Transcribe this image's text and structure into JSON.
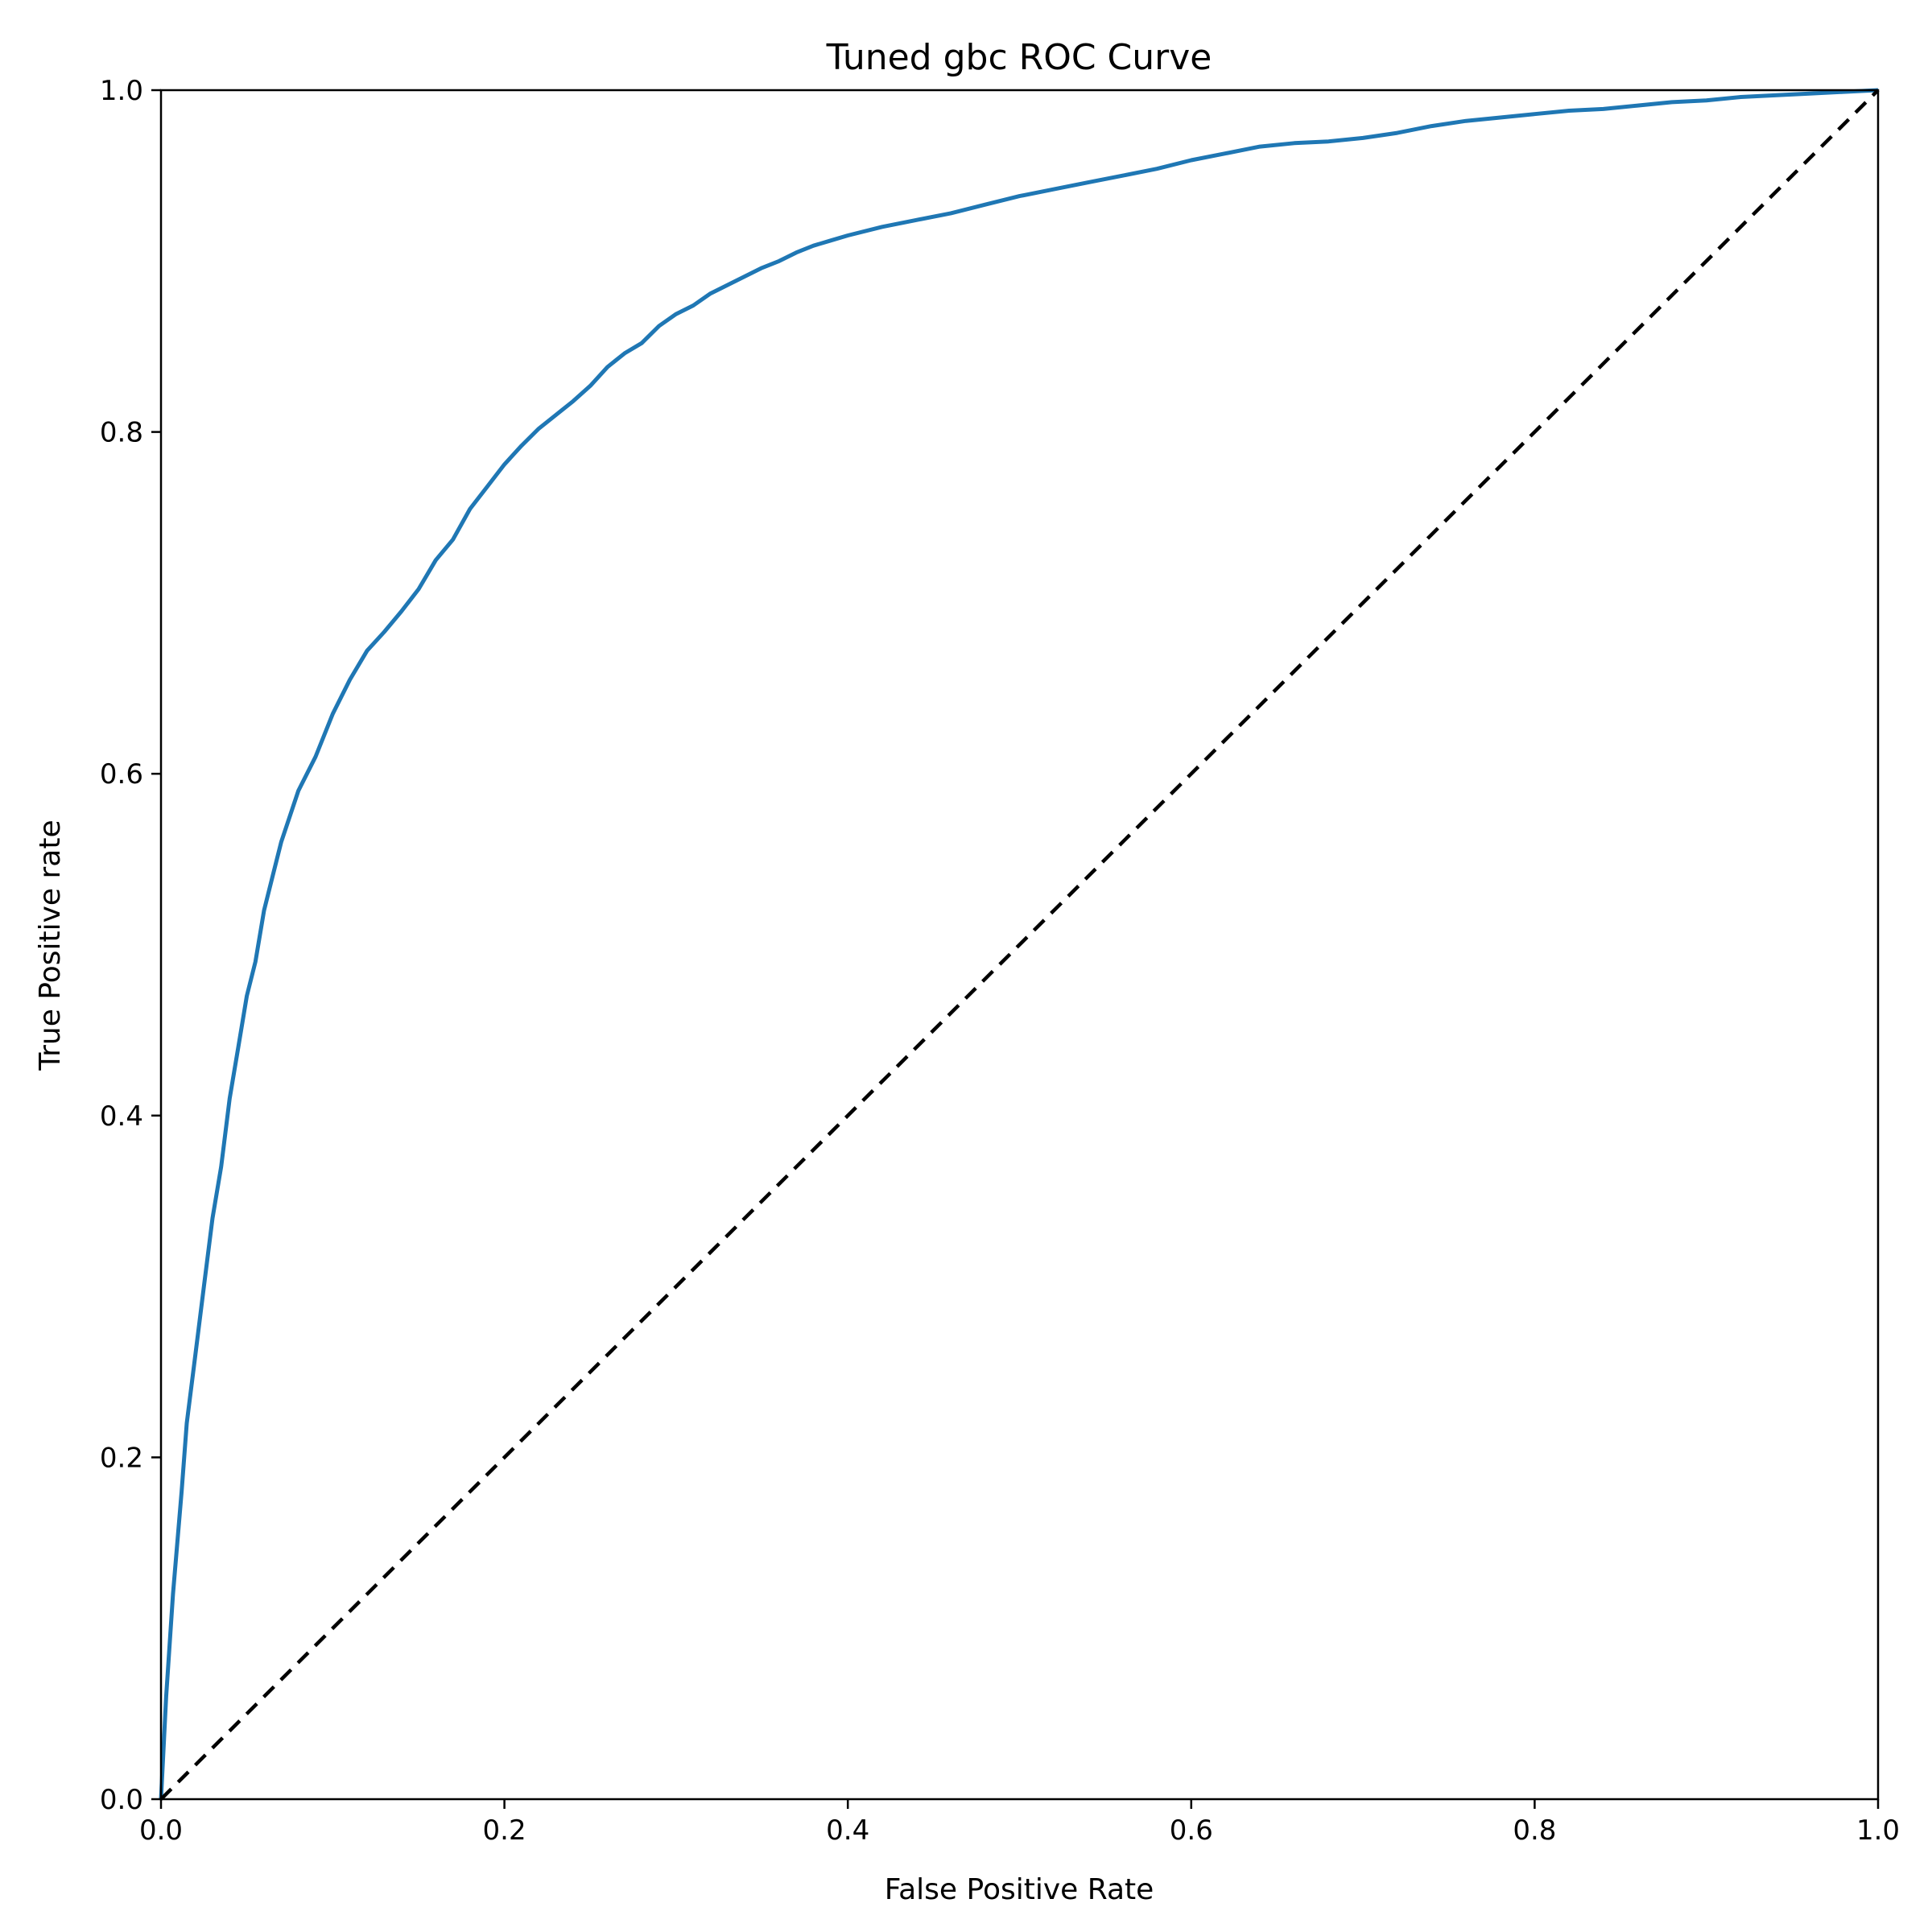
{
  "chart_data": {
    "type": "line",
    "title": "Tuned gbc ROC Curve",
    "xlabel": "False Positive Rate",
    "ylabel": "True Positive rate",
    "xlim": [
      0,
      1
    ],
    "ylim": [
      0,
      1
    ],
    "x_ticks": [
      "0.0",
      "0.2",
      "0.4",
      "0.6",
      "0.8",
      "1.0"
    ],
    "y_ticks": [
      "0.0",
      "0.2",
      "0.4",
      "0.6",
      "0.8",
      "1.0"
    ],
    "grid": false,
    "series": [
      {
        "color": "#1f77b4",
        "line_style": "solid",
        "points": [
          [
            0.0,
            0.0
          ],
          [
            0.003,
            0.06
          ],
          [
            0.007,
            0.12
          ],
          [
            0.012,
            0.18
          ],
          [
            0.015,
            0.22
          ],
          [
            0.02,
            0.26
          ],
          [
            0.025,
            0.3
          ],
          [
            0.03,
            0.34
          ],
          [
            0.035,
            0.37
          ],
          [
            0.04,
            0.41
          ],
          [
            0.045,
            0.44
          ],
          [
            0.05,
            0.47
          ],
          [
            0.055,
            0.49
          ],
          [
            0.06,
            0.52
          ],
          [
            0.065,
            0.54
          ],
          [
            0.07,
            0.56
          ],
          [
            0.08,
            0.59
          ],
          [
            0.09,
            0.61
          ],
          [
            0.1,
            0.635
          ],
          [
            0.11,
            0.655
          ],
          [
            0.12,
            0.672
          ],
          [
            0.13,
            0.683
          ],
          [
            0.14,
            0.695
          ],
          [
            0.15,
            0.708
          ],
          [
            0.16,
            0.725
          ],
          [
            0.17,
            0.737
          ],
          [
            0.18,
            0.755
          ],
          [
            0.19,
            0.768
          ],
          [
            0.2,
            0.781
          ],
          [
            0.21,
            0.792
          ],
          [
            0.22,
            0.802
          ],
          [
            0.23,
            0.81
          ],
          [
            0.24,
            0.818
          ],
          [
            0.25,
            0.827
          ],
          [
            0.26,
            0.838
          ],
          [
            0.27,
            0.846
          ],
          [
            0.28,
            0.852
          ],
          [
            0.29,
            0.862
          ],
          [
            0.3,
            0.869
          ],
          [
            0.31,
            0.874
          ],
          [
            0.32,
            0.881
          ],
          [
            0.33,
            0.886
          ],
          [
            0.34,
            0.891
          ],
          [
            0.35,
            0.896
          ],
          [
            0.36,
            0.9
          ],
          [
            0.37,
            0.905
          ],
          [
            0.38,
            0.909
          ],
          [
            0.39,
            0.912
          ],
          [
            0.4,
            0.915
          ],
          [
            0.42,
            0.92
          ],
          [
            0.44,
            0.924
          ],
          [
            0.46,
            0.928
          ],
          [
            0.48,
            0.933
          ],
          [
            0.5,
            0.938
          ],
          [
            0.52,
            0.942
          ],
          [
            0.54,
            0.946
          ],
          [
            0.56,
            0.95
          ],
          [
            0.58,
            0.954
          ],
          [
            0.6,
            0.959
          ],
          [
            0.62,
            0.963
          ],
          [
            0.64,
            0.967
          ],
          [
            0.66,
            0.969
          ],
          [
            0.68,
            0.97
          ],
          [
            0.7,
            0.972
          ],
          [
            0.72,
            0.975
          ],
          [
            0.74,
            0.979
          ],
          [
            0.76,
            0.982
          ],
          [
            0.78,
            0.984
          ],
          [
            0.8,
            0.986
          ],
          [
            0.82,
            0.988
          ],
          [
            0.84,
            0.989
          ],
          [
            0.86,
            0.991
          ],
          [
            0.88,
            0.993
          ],
          [
            0.9,
            0.994
          ],
          [
            0.92,
            0.996
          ],
          [
            0.94,
            0.997
          ],
          [
            0.96,
            0.998
          ],
          [
            0.98,
            0.999
          ],
          [
            1.0,
            1.0
          ]
        ]
      },
      {
        "color": "#000000",
        "line_style": "dashed",
        "points": [
          [
            0,
            0
          ],
          [
            1,
            1
          ]
        ]
      }
    ]
  }
}
